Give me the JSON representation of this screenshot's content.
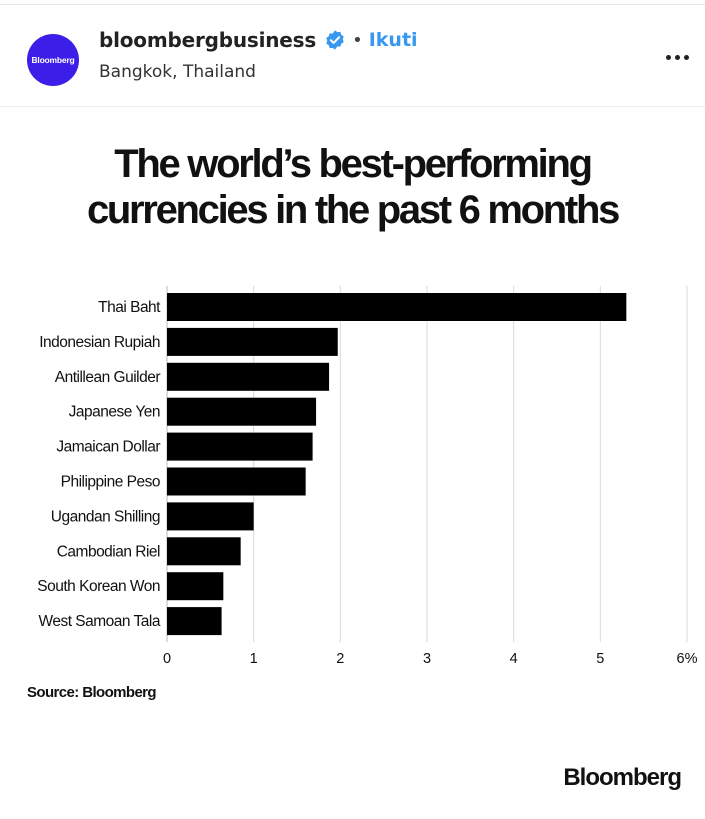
{
  "post": {
    "avatar_label": "Bloomberg",
    "account_name": "bloombergbusiness",
    "separator": "•",
    "follow_label": "Ikuti",
    "location": "Bangkok, Thailand",
    "more_icon": "more-horizontal-icon",
    "verified_icon": "verified-badge-icon",
    "accent_color": "#3897f0",
    "avatar_color": "#3b1fe8"
  },
  "image": {
    "title_line1": "The world’s best-performing",
    "title_line2": "currencies in the past 6 months",
    "source": "Source: Bloomberg",
    "brand": "Bloomberg"
  },
  "chart_data": {
    "type": "bar",
    "orientation": "horizontal",
    "title": "The world’s best-performing currencies in the past 6 months",
    "categories": [
      "Thai Baht",
      "Indonesian Rupiah",
      "Antillean Guilder",
      "Japanese Yen",
      "Jamaican Dollar",
      "Philippine Peso",
      "Ugandan Shilling",
      "Cambodian Riel",
      "South Korean Won",
      "West Samoan Tala"
    ],
    "values": [
      5.3,
      1.97,
      1.87,
      1.72,
      1.68,
      1.6,
      1.0,
      0.85,
      0.65,
      0.63
    ],
    "xlim": [
      0,
      6
    ],
    "xticks": [
      "0",
      "1",
      "2",
      "3",
      "4",
      "5",
      "6%"
    ],
    "xlabel": "",
    "ylabel": "",
    "grid": true,
    "bar_color": "#000000"
  }
}
